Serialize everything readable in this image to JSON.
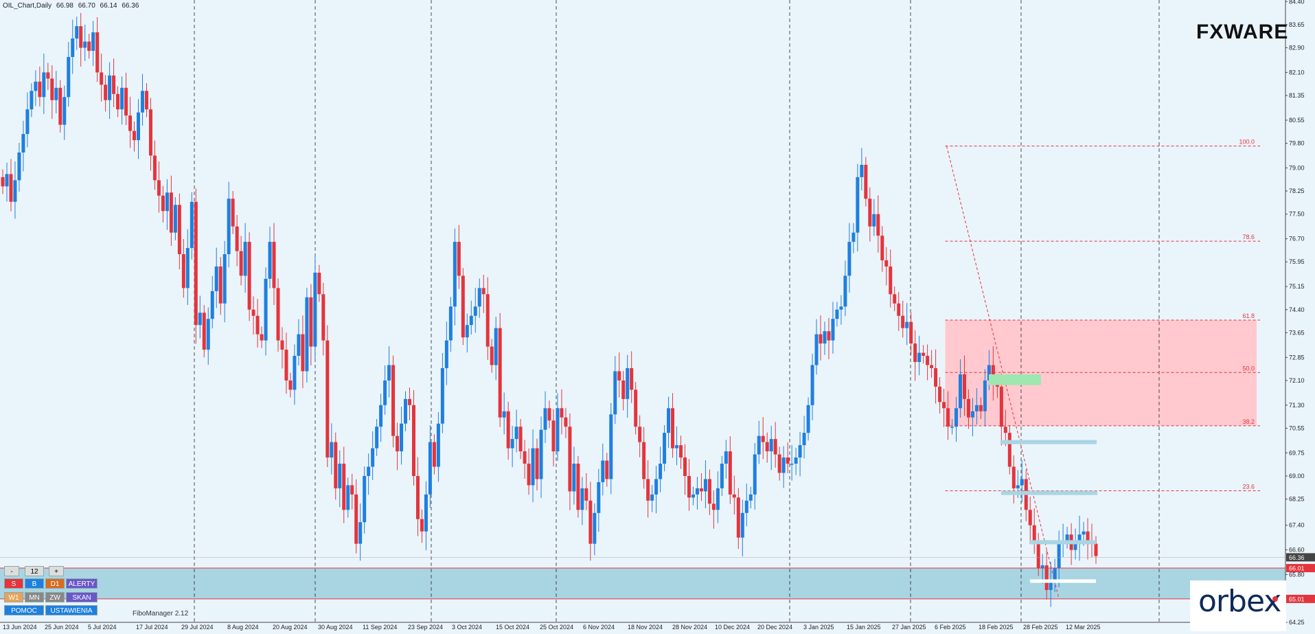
{
  "window": {
    "symbol": "OIL_Chart,Daily",
    "ohlc": [
      "66.98",
      "66.70",
      "66.14",
      "66.36"
    ]
  },
  "logo_text": "FXWARE",
  "orbex_text": "orbex",
  "indicator_label": "FiboManager 2.12",
  "panel": {
    "minus": "-",
    "count": "12",
    "plus": "+",
    "row1": [
      "S",
      "B",
      "D1",
      "ALERTY"
    ],
    "row2": [
      "W1",
      "MN",
      "ZW",
      "SKAN"
    ],
    "row3": [
      "POMOC",
      "USTAWIENIA"
    ]
  },
  "colors": {
    "background": "#eaf4fb",
    "bull": "#1e7fe0",
    "bear": "#e4343c",
    "fib_line": "#e4343c",
    "fib_zone": "#ffc9cf",
    "demand_zone": "#a9d5e3"
  },
  "chart_data": {
    "type": "candlestick",
    "ylim": [
      64.25,
      84.45
    ],
    "y_ticks": [
      "84.40",
      "83.65",
      "82.90",
      "82.10",
      "81.35",
      "80.55",
      "79.80",
      "79.00",
      "78.25",
      "77.50",
      "76.70",
      "75.95",
      "75.15",
      "74.40",
      "73.65",
      "72.85",
      "72.10",
      "71.30",
      "70.55",
      "69.75",
      "69.00",
      "68.25",
      "67.40",
      "66.60",
      "65.80",
      "65.05",
      "64.25"
    ],
    "x_ticks": [
      "13 Jun 2024",
      "25 Jun 2024",
      "5 Jul 2024",
      "17 Jul 2024",
      "29 Jul 2024",
      "8 Aug 2024",
      "20 Aug 2024",
      "30 Aug 2024",
      "11 Sep 2024",
      "23 Sep 2024",
      "3 Oct 2024",
      "15 Oct 2024",
      "25 Oct 2024",
      "6 Nov 2024",
      "18 Nov 2024",
      "28 Nov 2024",
      "10 Dec 2024",
      "20 Dec 2024",
      "3 Jan 2025",
      "15 Jan 2025",
      "27 Jan 2025",
      "6 Feb 2025",
      "18 Feb 2025",
      "28 Feb 2025",
      "12 Mar 2025"
    ],
    "closes": [
      78.4,
      78.8,
      77.9,
      78.6,
      79.5,
      80.1,
      80.9,
      81.5,
      81.8,
      81.3,
      82.1,
      81.9,
      81.2,
      81.6,
      80.4,
      81.3,
      82.6,
      83.2,
      83.6,
      82.9,
      83.1,
      82.8,
      83.4,
      82.1,
      81.7,
      81.2,
      82.0,
      81.4,
      80.9,
      81.6,
      80.7,
      80.2,
      79.9,
      80.8,
      81.5,
      80.9,
      79.4,
      78.6,
      78.1,
      77.6,
      78.2,
      76.9,
      77.8,
      76.2,
      75.1,
      76.4,
      77.9,
      73.9,
      74.3,
      73.1,
      74.1,
      75.0,
      75.8,
      74.6,
      76.2,
      78.0,
      77.1,
      76.3,
      75.5,
      76.6,
      74.4,
      74.2,
      73.6,
      73.4,
      75.4,
      76.6,
      75.1,
      73.4,
      73.1,
      72.1,
      71.8,
      72.9,
      73.6,
      72.4,
      74.8,
      73.2,
      75.6,
      74.9,
      73.4,
      69.6,
      70.1,
      68.6,
      69.4,
      67.9,
      68.7,
      68.4,
      66.8,
      67.5,
      69.0,
      69.3,
      69.9,
      70.6,
      71.3,
      72.1,
      72.6,
      70.3,
      69.8,
      70.7,
      71.5,
      71.3,
      69.0,
      67.6,
      67.2,
      68.4,
      70.1,
      69.3,
      70.7,
      72.5,
      73.4,
      74.5,
      76.6,
      75.5,
      73.5,
      73.9,
      74.2,
      74.5,
      75.1,
      74.9,
      73.2,
      72.6,
      73.8,
      70.9,
      71.1,
      69.9,
      70.2,
      70.6,
      69.8,
      69.4,
      68.7,
      69.9,
      68.9,
      70.5,
      71.2,
      70.8,
      69.8,
      71.2,
      70.9,
      70.6,
      68.5,
      69.4,
      67.9,
      68.6,
      68.2,
      66.8,
      67.8,
      68.8,
      69.5,
      68.9,
      71.0,
      72.4,
      72.1,
      71.5,
      72.5,
      71.8,
      70.6,
      70.1,
      68.9,
      68.2,
      68.4,
      68.9,
      69.4,
      70.4,
      71.2,
      69.9,
      70.0,
      69.6,
      69.0,
      68.3,
      68.4,
      68.6,
      68.5,
      68.9,
      68.1,
      67.9,
      68.6,
      69.4,
      69.8,
      68.4,
      68.3,
      67.0,
      67.8,
      68.2,
      68.4,
      69.7,
      70.3,
      70.1,
      69.8,
      70.2,
      69.7,
      69.1,
      69.6,
      69.4,
      69.4,
      69.6,
      70.0,
      70.4,
      71.3,
      72.6,
      73.6,
      73.3,
      73.7,
      73.4,
      74.1,
      74.4,
      74.5,
      75.5,
      76.6,
      76.9,
      78.7,
      79.1,
      78.0,
      77.1,
      77.5,
      76.8,
      76.0,
      75.8,
      74.9,
      74.6,
      74.2,
      73.8,
      74.0,
      73.3,
      72.7,
      73.0,
      72.9,
      72.6,
      72.5,
      71.9,
      71.4,
      71.2,
      70.6,
      70.6,
      71.2,
      72.3,
      71.5,
      70.9,
      71.1,
      71.3,
      71.1,
      72.1,
      72.6,
      72.0,
      71.9,
      70.6,
      70.4,
      69.3,
      68.6,
      68.7,
      68.9,
      67.9,
      67.4,
      66.9,
      66.0,
      66.1,
      65.3,
      65.6,
      66.0,
      66.8,
      66.9,
      67.1,
      66.6,
      66.8,
      67.1,
      67.2,
      66.9,
      66.8,
      66.4
    ],
    "fibonacci": {
      "levels": [
        {
          "label": "100.0",
          "value": 79.71
        },
        {
          "label": "78.6",
          "value": 76.62
        },
        {
          "label": "61.8",
          "value": 74.06
        },
        {
          "label": "50.0",
          "value": 72.36
        },
        {
          "label": "38.2",
          "value": 70.63
        },
        {
          "label": "23.6",
          "value": 68.52
        }
      ],
      "swing_start_date": "15 Jan 2025",
      "swing_high": 79.71,
      "swing_low": 65.01
    },
    "zones": [
      {
        "name": "fib-zone",
        "from": 70.63,
        "to": 74.06,
        "color": "#ffc9cf"
      },
      {
        "name": "demand-zone",
        "from": 65.01,
        "to": 66.01,
        "color": "#a9d5e3"
      }
    ],
    "price_tags": [
      {
        "label": "66.36",
        "value": 66.36,
        "color": "#444444"
      },
      {
        "label": "66.01",
        "value": 66.01,
        "color": "#e4343c"
      },
      {
        "label": "65.01",
        "value": 65.01,
        "color": "#e4343c"
      }
    ]
  }
}
